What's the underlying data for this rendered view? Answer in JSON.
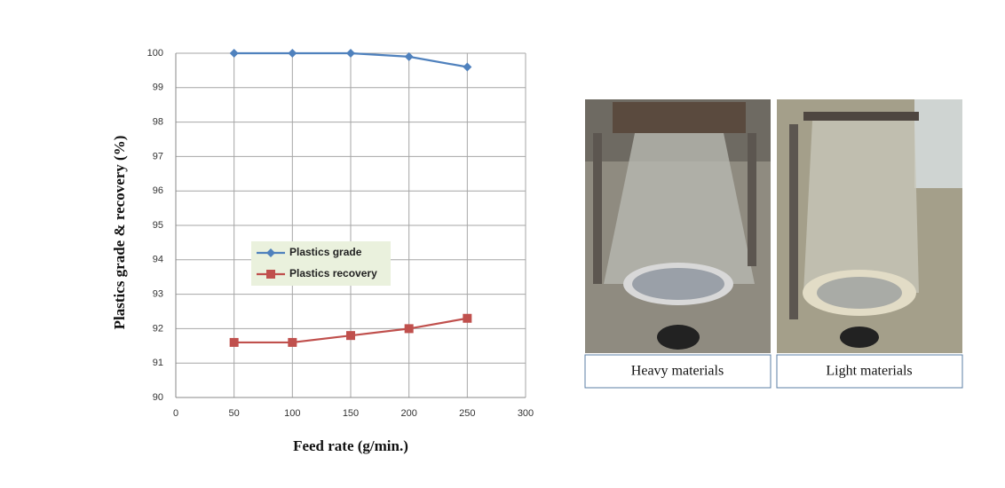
{
  "chart_data": {
    "type": "line",
    "x_label": "Feed rate (g/min.)",
    "y_label": "Plastics grade & recovery (%)",
    "x": [
      50,
      100,
      150,
      200,
      250
    ],
    "series": [
      {
        "name": "Plastics grade",
        "color": "#4f81bd",
        "marker": "diamond",
        "values": [
          100,
          100,
          100,
          99.9,
          99.6
        ]
      },
      {
        "name": "Plastics recovery",
        "color": "#c0504d",
        "marker": "square",
        "values": [
          91.6,
          91.6,
          91.8,
          92,
          92.3
        ]
      }
    ],
    "xlim": [
      0,
      300
    ],
    "xticks": [
      0,
      50,
      100,
      150,
      200,
      250,
      300
    ],
    "ylim": [
      90,
      100
    ],
    "yticks": [
      90,
      91,
      92,
      93,
      94,
      95,
      96,
      97,
      98,
      99,
      100
    ],
    "grid": true
  },
  "photo_captions": [
    "Heavy materials",
    "Light materials"
  ]
}
